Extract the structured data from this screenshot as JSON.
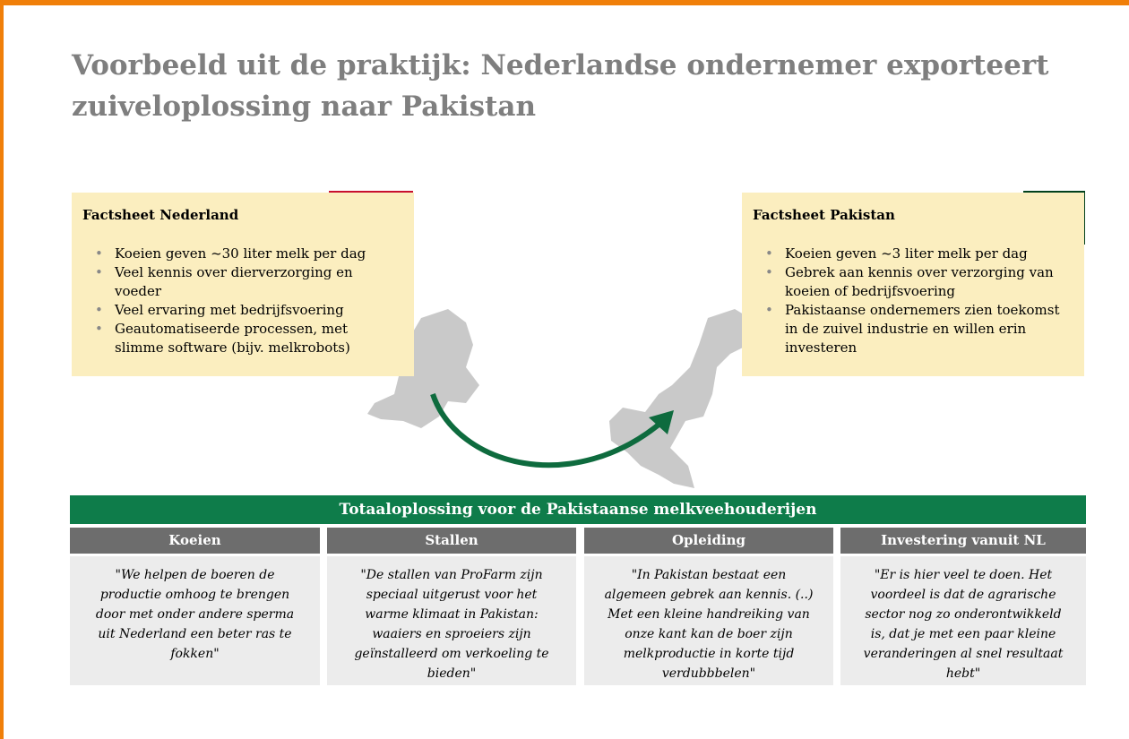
{
  "title": "Voorbeeld uit de praktijk: Nederlandse ondernemer exporteert zuiveloplossing naar Pakistan",
  "factsheets": [
    {
      "title": "Factsheet Nederland",
      "bullets": [
        "Koeien geven ~30 liter melk per dag",
        "Veel kennis over dierverzorging en voeder",
        "Veel ervaring met bedrijfsvoering",
        "Geautomatiseerde processen, met slimme software (bijv. melkrobots)"
      ]
    },
    {
      "title": "Factsheet Pakistan",
      "bullets": [
        "Koeien geven ~3 liter melk per dag",
        "Gebrek aan kennis over verzorging van koeien of bedrijfsvoering",
        "Pakistaanse ondernemers zien toekomst in de zuivel industrie en willen erin investeren"
      ]
    }
  ],
  "banner": "Totaaloplossing voor de Pakistaanse melkveehouderijen",
  "columns": [
    {
      "header": "Koeien",
      "quote": "\"We helpen de boeren de productie omhoog te brengen door met onder andere sperma uit Nederland een beter ras te fokken\""
    },
    {
      "header": "Stallen",
      "quote": "\"De stallen van ProFarm zijn speciaal uitgerust voor het warme klimaat in Pakistan: waaiers en sproeiers zijn geïnstalleerd om verkoeling te bieden\""
    },
    {
      "header": "Opleiding",
      "quote": "\"In Pakistan bestaat een algemeen gebrek aan kennis. (..) Met een kleine handreiking van onze kant kan de boer zijn melkproductie in korte tijd verdubbbelen\""
    },
    {
      "header": "Investering vanuit NL",
      "quote": "\"Er is hier veel te doen. Het voordeel is dat de agrarische sector nog zo onderontwikkeld is, dat je met een paar kleine veranderingen al snel resultaat hebt\""
    }
  ]
}
